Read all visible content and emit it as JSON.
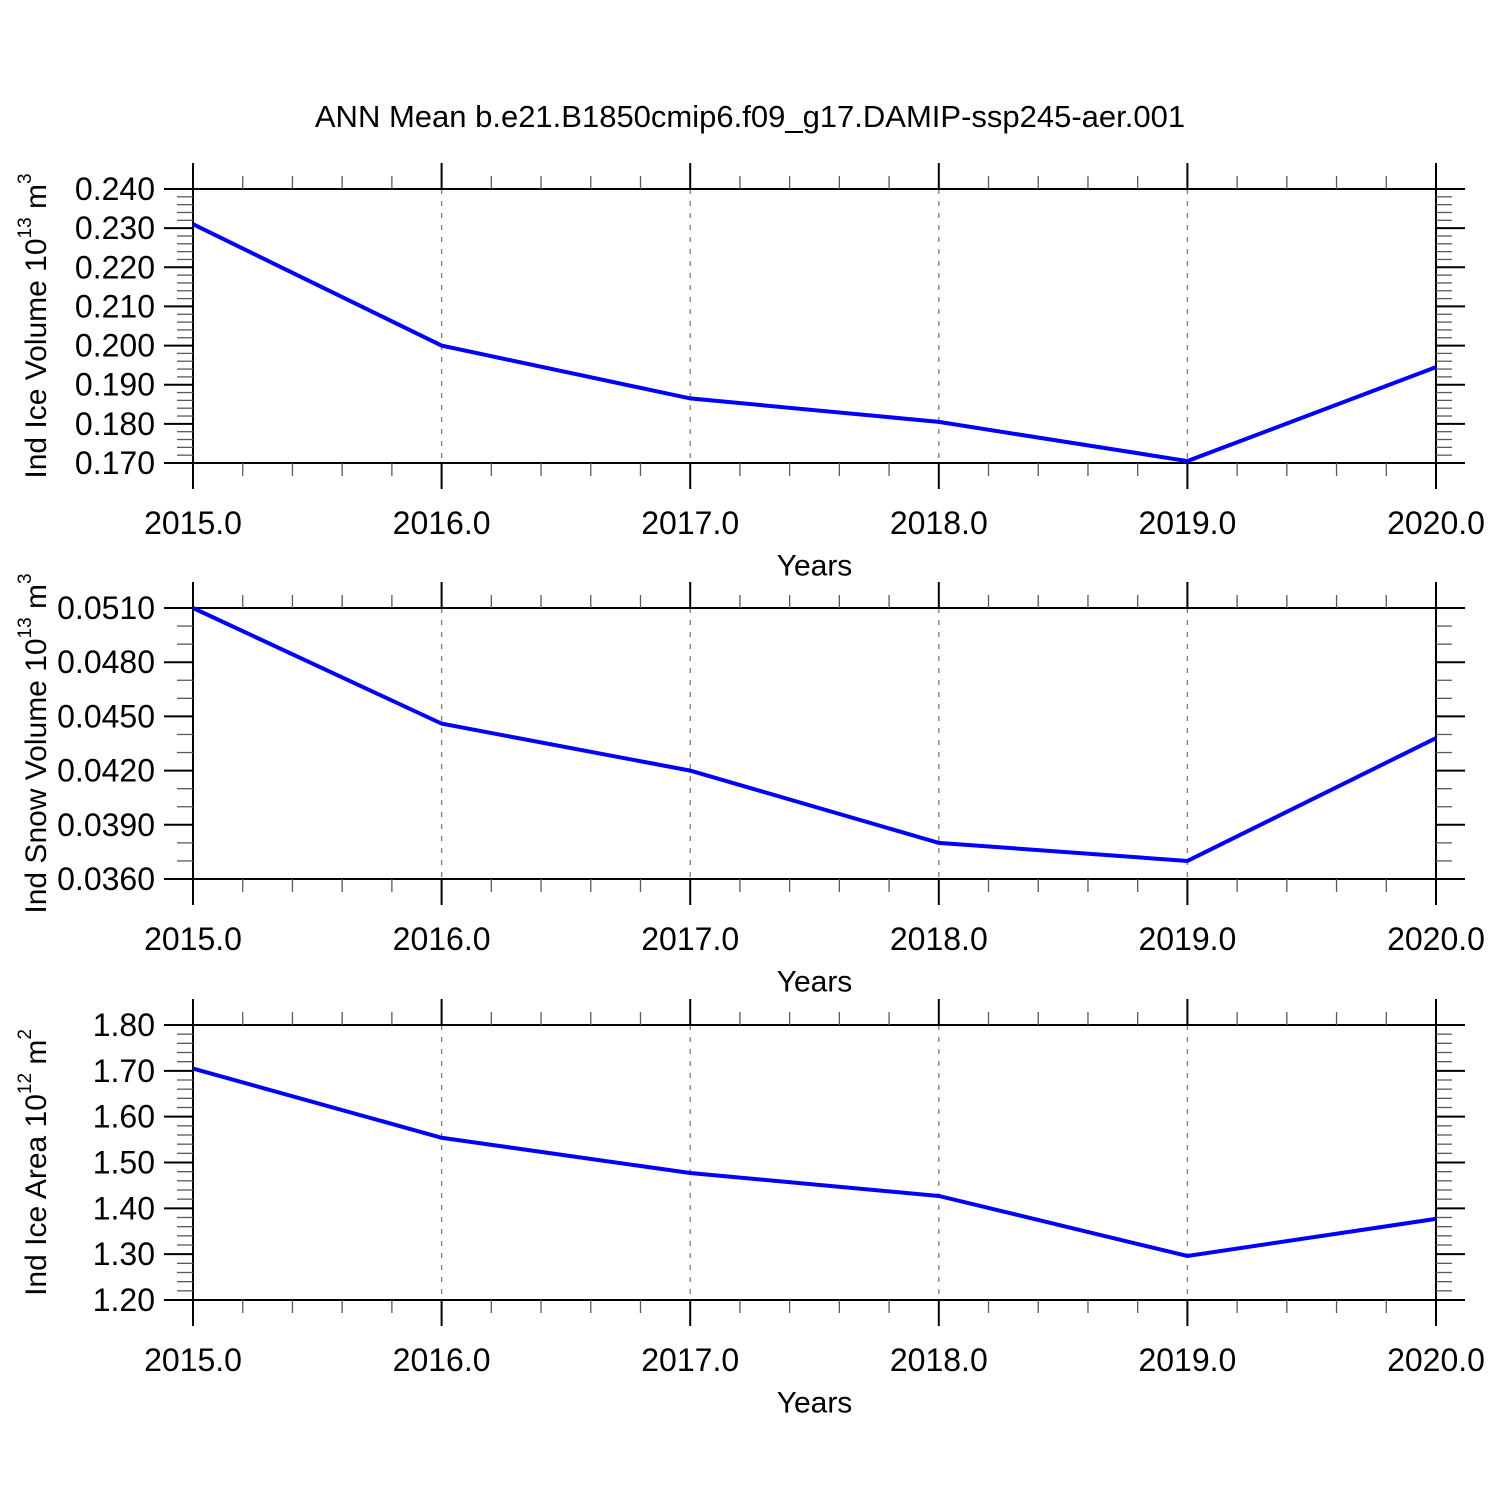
{
  "figure": {
    "title": "ANN Mean b.e21.B1850cmip6.f09_g17.DAMIP-ssp245-aer.001",
    "background": "#ffffff",
    "line_color": "#0000ff",
    "axis_color": "#000000",
    "grid_color": "#7d7d7d",
    "minor_tick_color": "#5a5a5a"
  },
  "chart_data": [
    {
      "name": "ice-volume",
      "type": "line",
      "x": [
        2015.0,
        2016.0,
        2017.0,
        2018.0,
        2019.0,
        2020.0
      ],
      "values": [
        0.231,
        0.2,
        0.1865,
        0.1805,
        0.1705,
        0.1945
      ],
      "series_name": "Ind Ice Volume",
      "xlabel": "Years",
      "ylabel": "Ind Ice Volume 10^13 m^3",
      "ylabel_rich": [
        {
          "t": "Ind Ice Volume 10"
        },
        {
          "t": "13",
          "sup": true
        },
        {
          "t": " m"
        },
        {
          "t": "3",
          "sup": true
        }
      ],
      "xlim": [
        2015.0,
        2020.0
      ],
      "ylim": [
        0.17,
        0.24
      ],
      "xticks": {
        "values": [
          2015.0,
          2016.0,
          2017.0,
          2018.0,
          2019.0,
          2020.0
        ],
        "labels": [
          "2015.0",
          "2016.0",
          "2017.0",
          "2018.0",
          "2019.0",
          "2020.0"
        ],
        "minor_step": 0.2
      },
      "yticks": {
        "values": [
          0.17,
          0.18,
          0.19,
          0.2,
          0.21,
          0.22,
          0.23,
          0.24
        ],
        "labels": [
          "0.170",
          "0.180",
          "0.190",
          "0.200",
          "0.210",
          "0.220",
          "0.230",
          "0.240"
        ],
        "minor_step": 0.002
      },
      "grid_x_dashed": [
        2016.0,
        2017.0,
        2018.0,
        2019.0
      ],
      "grid_on": "vertical-dashed-only",
      "legend": "none"
    },
    {
      "name": "snow-volume",
      "type": "line",
      "x": [
        2015.0,
        2016.0,
        2017.0,
        2018.0,
        2019.0,
        2020.0
      ],
      "values": [
        0.051,
        0.0446,
        0.042,
        0.038,
        0.037,
        0.0438
      ],
      "series_name": "Ind Snow Volume",
      "xlabel": "Years",
      "ylabel": "Ind Snow Volume 10^13 m^3",
      "ylabel_rich": [
        {
          "t": "Ind Snow Volume 10"
        },
        {
          "t": "13",
          "sup": true
        },
        {
          "t": " m"
        },
        {
          "t": "3",
          "sup": true
        }
      ],
      "xlim": [
        2015.0,
        2020.0
      ],
      "ylim": [
        0.036,
        0.051
      ],
      "xticks": {
        "values": [
          2015.0,
          2016.0,
          2017.0,
          2018.0,
          2019.0,
          2020.0
        ],
        "labels": [
          "2015.0",
          "2016.0",
          "2017.0",
          "2018.0",
          "2019.0",
          "2020.0"
        ],
        "minor_step": 0.2
      },
      "yticks": {
        "values": [
          0.036,
          0.039,
          0.042,
          0.045,
          0.048,
          0.051
        ],
        "labels": [
          "0.0360",
          "0.0390",
          "0.0420",
          "0.0450",
          "0.0480",
          "0.0510"
        ],
        "minor_step": 0.001
      },
      "grid_x_dashed": [
        2016.0,
        2017.0,
        2018.0,
        2019.0
      ],
      "grid_on": "vertical-dashed-only",
      "legend": "none"
    },
    {
      "name": "ice-area",
      "type": "line",
      "x": [
        2015.0,
        2016.0,
        2017.0,
        2018.0,
        2019.0,
        2020.0
      ],
      "values": [
        1.705,
        1.554,
        1.477,
        1.427,
        1.296,
        1.377
      ],
      "series_name": "Ind Ice Area",
      "xlabel": "Years",
      "ylabel": "Ind Ice Area 10^12 m^2",
      "ylabel_rich": [
        {
          "t": "Ind Ice Area 10"
        },
        {
          "t": "12",
          "sup": true
        },
        {
          "t": " m"
        },
        {
          "t": "2",
          "sup": true
        }
      ],
      "xlim": [
        2015.0,
        2020.0
      ],
      "ylim": [
        1.2,
        1.8
      ],
      "xticks": {
        "values": [
          2015.0,
          2016.0,
          2017.0,
          2018.0,
          2019.0,
          2020.0
        ],
        "labels": [
          "2015.0",
          "2016.0",
          "2017.0",
          "2018.0",
          "2019.0",
          "2020.0"
        ],
        "minor_step": 0.2
      },
      "yticks": {
        "values": [
          1.2,
          1.3,
          1.4,
          1.5,
          1.6,
          1.7,
          1.8
        ],
        "labels": [
          "1.20",
          "1.30",
          "1.40",
          "1.50",
          "1.60",
          "1.70",
          "1.80"
        ],
        "minor_step": 0.02
      },
      "grid_x_dashed": [
        2016.0,
        2017.0,
        2018.0,
        2019.0
      ],
      "grid_on": "vertical-dashed-only",
      "legend": "none"
    }
  ]
}
